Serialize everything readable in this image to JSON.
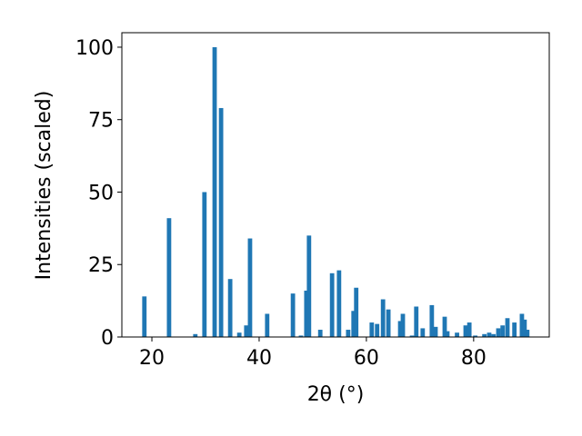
{
  "chart_data": {
    "type": "bar",
    "x": [
      18.6,
      23.2,
      28.1,
      29.8,
      31.7,
      32.9,
      34.6,
      36.3,
      37.6,
      38.3,
      41.5,
      46.3,
      47.8,
      48.8,
      49.3,
      51.4,
      53.6,
      54.9,
      56.6,
      57.6,
      58.1,
      61.0,
      62.0,
      63.1,
      64.1,
      66.3,
      66.8,
      68.5,
      69.3,
      70.5,
      72.2,
      72.9,
      74.6,
      75.1,
      76.9,
      78.5,
      79.2,
      80.3,
      82.0,
      82.9,
      83.7,
      84.6,
      85.4,
      86.3,
      87.6,
      89.0,
      89.5,
      90.0
    ],
    "values": [
      14,
      41,
      1,
      50,
      100,
      79,
      20,
      1.5,
      4,
      34,
      8,
      15,
      0.5,
      16,
      35,
      2.5,
      22,
      23,
      2.5,
      9,
      17,
      5,
      4.5,
      13,
      9.5,
      5.5,
      8,
      0.5,
      10.5,
      3,
      11,
      3.5,
      7,
      2,
      1.5,
      4,
      5,
      0.5,
      1,
      1.5,
      1,
      3,
      4,
      6.5,
      5,
      8,
      6,
      2.5
    ],
    "color": "#1f77b4",
    "xlabel": "2θ (°)",
    "ylabel": "Intensities (scaled)",
    "xlim": [
      14.4,
      94.1
    ],
    "ylim": [
      0,
      105
    ],
    "xticks": [
      20,
      40,
      60,
      80
    ],
    "yticks": [
      0,
      25,
      50,
      75,
      100
    ]
  }
}
